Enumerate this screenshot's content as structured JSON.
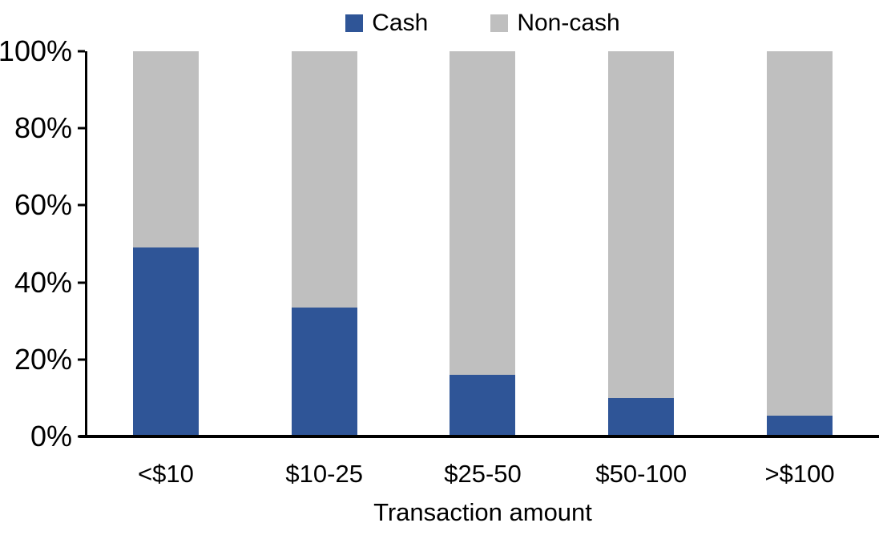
{
  "chart_data": {
    "type": "bar",
    "variant": "100%-stacked-column",
    "title": "",
    "xlabel": "Transaction amount",
    "ylabel": "",
    "categories": [
      "<$10",
      "$10-25",
      "$25-50",
      "$50-100",
      ">$100"
    ],
    "series": [
      {
        "name": "Cash",
        "color": "#2F5597",
        "values": [
          49,
          33.5,
          16,
          10,
          5.5
        ]
      },
      {
        "name": "Non-cash",
        "color": "#BFBFBF",
        "values": [
          51,
          66.5,
          84,
          90,
          94.5
        ]
      }
    ],
    "ylim": [
      0,
      100
    ],
    "ytick_labels": [
      "0%",
      "20%",
      "40%",
      "60%",
      "80%",
      "100%"
    ],
    "ytick_values": [
      0,
      20,
      40,
      60,
      80,
      100
    ],
    "grid": false,
    "legend_position": "top-center",
    "axis_color": "#000000",
    "background_color": "#FFFFFF"
  }
}
